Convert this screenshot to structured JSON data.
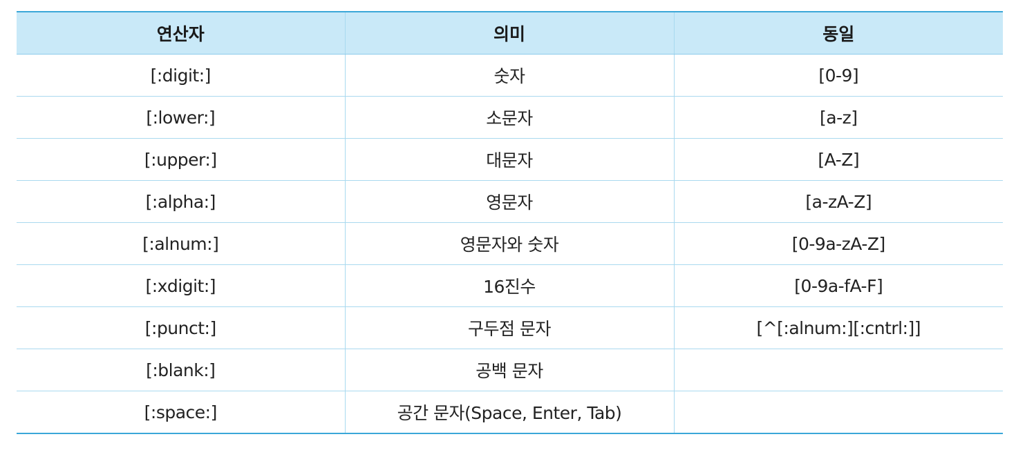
{
  "table": {
    "headers": [
      "연산자",
      "의미",
      "동일"
    ],
    "rows": [
      [
        "[:digit:]",
        "숫자",
        "[0-9]"
      ],
      [
        "[:lower:]",
        "소문자",
        "[a-z]"
      ],
      [
        "[:upper:]",
        "대문자",
        "[A-Z]"
      ],
      [
        "[:alpha:]",
        "영문자",
        "[a-zA-Z]"
      ],
      [
        "[:alnum:]",
        "영문자와 숫자",
        "[0-9a-zA-Z]"
      ],
      [
        "[:xdigit:]",
        "16진수",
        "[0-9a-fA-F]"
      ],
      [
        "[:punct:]",
        "구두점 문자",
        "[^[:alnum:][:cntrl:]]"
      ],
      [
        "[:blank:]",
        "공백 문자",
        ""
      ],
      [
        "[:space:]",
        "공간 문자(Space, Enter, Tab)",
        ""
      ]
    ]
  },
  "colors": {
    "header_bg": "#c9e9f8",
    "rule": "#3aa7d8",
    "grid": "#a9d9ef"
  }
}
